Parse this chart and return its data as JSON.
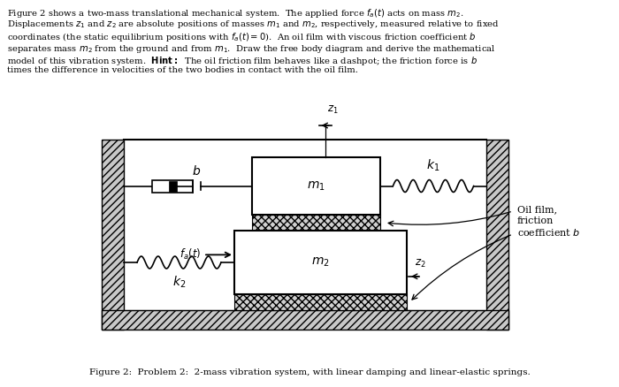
{
  "bg_color": "#ffffff",
  "fig_width": 7.0,
  "fig_height": 4.38,
  "dpi": 100,
  "wall_hatch": "////",
  "oil_hatch": "xxxx",
  "wall_fc": "#c8c8c8",
  "oil_fc": "#d0d0d0",
  "mass_fc": "#ffffff",
  "lw": 1.2,
  "para_lines": [
    "Figure 2 shows a two-mass translational mechanical system.  The applied force $f_a(t)$ acts on mass $m_2$.",
    "Displacements $z_1$ and $z_2$ are absolute positions of masses $m_1$ and $m_2$, respectively, measured relative to fixed",
    "coordinates (the static equilibrium positions with $f_a(t) = 0$).  An oil film with viscous friction coefficient $b$",
    "separates mass $m_2$ from the ground and from $m_1$.  Draw the free body diagram and derive the mathematical",
    "model of this vibration system.  \\mathbf{Hint:}  The oil friction film behaves like a dashpot; the friction force is $b$",
    "times the difference in velocities of the two bodies in contact with the oil film."
  ],
  "caption": "Figure 2:  Problem 2:  2-mass vibration system, with linear damping and linear-elastic springs."
}
